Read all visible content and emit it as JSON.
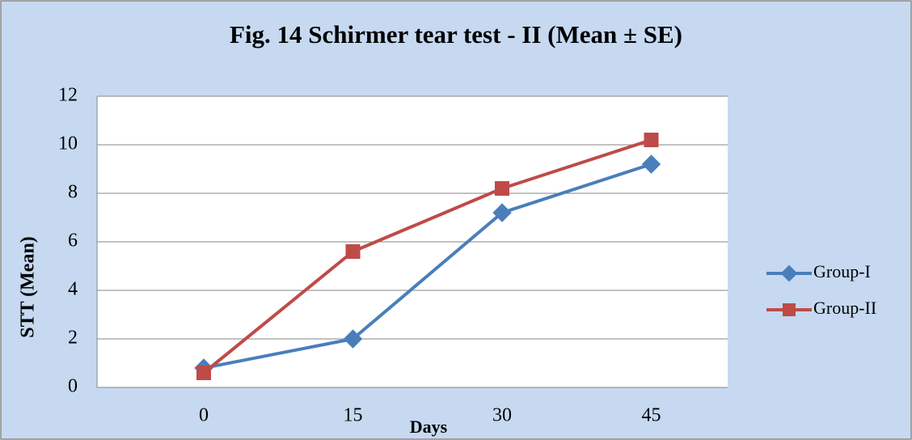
{
  "chart_data": {
    "type": "line",
    "title": "Fig. 14 Schirmer tear test - II (Mean ± SE)",
    "x_label": "Days",
    "y_label": "STT (Mean)",
    "categories": [
      "0",
      "15",
      "30",
      "45"
    ],
    "series": [
      {
        "name": "Group-I",
        "color": "#4a7ebb",
        "marker": "diamond",
        "values": [
          0.8,
          2,
          7.2,
          9.2
        ]
      },
      {
        "name": "Group-II",
        "color": "#be4b48",
        "marker": "square",
        "values": [
          0.6,
          5.6,
          8.2,
          10.2
        ]
      }
    ],
    "ylim": [
      0,
      12
    ],
    "yticks": [
      0,
      2,
      4,
      6,
      8,
      10,
      12
    ],
    "grid": true,
    "legend": "right"
  }
}
